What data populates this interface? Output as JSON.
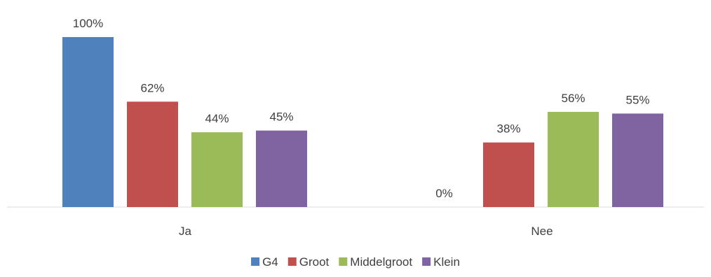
{
  "chart_data": {
    "type": "bar",
    "title": "",
    "xlabel": "",
    "ylabel": "",
    "ylim": [
      0,
      100
    ],
    "grid": false,
    "legend_position": "bottom",
    "categories": [
      "Ja",
      "Nee"
    ],
    "series": [
      {
        "name": "G4",
        "color": "#4f81bd",
        "values": [
          100,
          0
        ],
        "labels": [
          "100%",
          "0%"
        ]
      },
      {
        "name": "Groot",
        "color": "#c0504d",
        "values": [
          62,
          38
        ],
        "labels": [
          "62%",
          "38%"
        ]
      },
      {
        "name": "Middelgroot",
        "color": "#9bbb59",
        "values": [
          44,
          56
        ],
        "labels": [
          "44%",
          "56%"
        ]
      },
      {
        "name": "Klein",
        "color": "#8064a2",
        "values": [
          45,
          55
        ],
        "labels": [
          "45%",
          "55%"
        ]
      }
    ]
  }
}
